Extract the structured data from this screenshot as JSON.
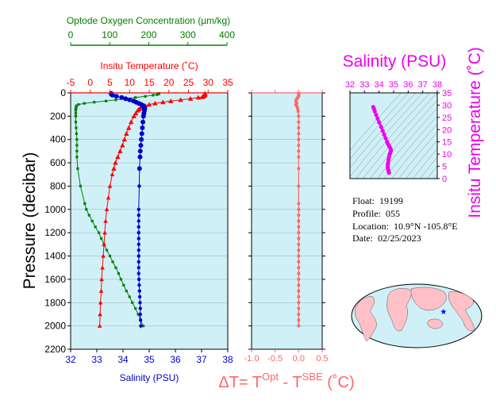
{
  "chart_data": [
    {
      "type": "line",
      "title": "",
      "y_axis": {
        "label": "Pressure (decibar)",
        "range": [
          2200,
          0
        ],
        "ticks": [
          0,
          200,
          400,
          600,
          800,
          1000,
          1200,
          1400,
          1600,
          1800,
          2000,
          2200
        ]
      },
      "x_axes": {
        "oxygen": {
          "label": "Optode Oxygen Concentration (µm/kg)",
          "range": [
            0,
            400
          ],
          "ticks": [
            0,
            100,
            200,
            300,
            400
          ],
          "color": "#008000"
        },
        "temperature": {
          "label": "Insitu Temperature (˚C)",
          "range": [
            -5,
            35
          ],
          "ticks": [
            -5,
            0,
            5,
            10,
            15,
            20,
            25,
            30,
            35
          ],
          "color": "#ff0000"
        },
        "salinity": {
          "label": "Salinity (PSU)",
          "range": [
            32,
            38
          ],
          "ticks": [
            32,
            33,
            34,
            35,
            36,
            37,
            38
          ],
          "color": "#0000cc"
        }
      },
      "series": [
        {
          "name": "Optode Oxygen Concentration",
          "axis": "oxygen",
          "color": "#008000",
          "pressure": [
            5,
            10,
            15,
            20,
            30,
            40,
            50,
            60,
            70,
            80,
            90,
            100,
            110,
            120,
            130,
            140,
            150,
            175,
            200,
            250,
            300,
            350,
            400,
            450,
            500,
            550,
            650,
            800,
            950,
            1000,
            1050,
            1100,
            1150,
            1200,
            1250,
            1300,
            1350,
            1400,
            1450,
            1500,
            1550,
            1600,
            1650,
            1700,
            1750,
            1800,
            1850,
            1900,
            1950,
            2000
          ],
          "values": [
            225,
            224,
            220,
            210,
            190,
            165,
            140,
            115,
            90,
            60,
            35,
            20,
            15,
            14,
            14,
            13,
            13,
            13,
            13,
            13,
            14,
            15,
            16,
            16,
            16,
            16,
            18,
            25,
            36,
            40,
            47,
            55,
            63,
            72,
            78,
            85,
            92,
            100,
            107,
            115,
            122,
            128,
            135,
            142,
            150,
            157,
            165,
            172,
            178,
            185
          ]
        },
        {
          "name": "Insitu Temperature",
          "axis": "temperature",
          "color": "#ff0000",
          "pressure": [
            5,
            10,
            15,
            20,
            25,
            30,
            35,
            40,
            50,
            60,
            70,
            80,
            90,
            100,
            110,
            120,
            130,
            140,
            150,
            175,
            200,
            250,
            300,
            350,
            400,
            450,
            500,
            550,
            600,
            650,
            700,
            800,
            900,
            1000,
            1100,
            1200,
            1300,
            1400,
            1500,
            1600,
            1700,
            1800,
            1900,
            2000
          ],
          "values": [
            29.2,
            29.2,
            29.2,
            29.1,
            29.0,
            28.8,
            28.5,
            27.5,
            25.5,
            23.0,
            20.5,
            18.5,
            16.5,
            15.0,
            14.0,
            13.2,
            12.8,
            12.4,
            12.1,
            11.6,
            11.1,
            10.4,
            9.8,
            9.2,
            8.7,
            8.2,
            7.6,
            7.0,
            6.4,
            6.0,
            5.6,
            5.0,
            4.6,
            4.2,
            3.9,
            3.7,
            3.5,
            3.3,
            3.1,
            2.9,
            2.8,
            2.6,
            2.5,
            2.4
          ]
        },
        {
          "name": "Salinity",
          "axis": "salinity",
          "color": "#0000cc",
          "pressure": [
            5,
            10,
            15,
            20,
            30,
            40,
            50,
            60,
            70,
            80,
            90,
            100,
            110,
            120,
            130,
            140,
            150,
            175,
            200,
            250,
            300,
            350,
            400,
            450,
            500,
            550,
            650,
            800,
            1000,
            1050,
            1100,
            1150,
            1200,
            1250,
            1300,
            1350,
            1400,
            1450,
            1500,
            1550,
            1600,
            1650,
            1700,
            1750,
            1800,
            1850,
            1900,
            1950,
            2000
          ],
          "values": [
            33.55,
            33.55,
            33.57,
            33.6,
            33.75,
            33.95,
            34.1,
            34.25,
            34.4,
            34.5,
            34.6,
            34.7,
            34.77,
            34.8,
            34.82,
            34.83,
            34.82,
            34.8,
            34.78,
            34.76,
            34.74,
            34.72,
            34.7,
            34.68,
            34.66,
            34.65,
            34.63,
            34.62,
            34.6,
            34.6,
            34.6,
            34.6,
            34.6,
            34.6,
            34.6,
            34.6,
            34.6,
            34.6,
            34.6,
            34.6,
            34.61,
            34.62,
            34.63,
            34.64,
            34.65,
            34.66,
            34.66,
            34.67,
            34.68
          ]
        }
      ]
    },
    {
      "type": "line",
      "title": "",
      "y_axis": {
        "range": [
          2200,
          0
        ],
        "ticks": [
          0,
          200,
          400,
          600,
          800,
          1000,
          1200,
          1400,
          1600,
          1800,
          2000,
          2200
        ]
      },
      "x_axis": {
        "label": "ΔT= T^Opt - T^SBE (˚C)",
        "label_parts": [
          "ΔT= T",
          "Opt",
          " - T",
          "SBE",
          " (˚C)"
        ],
        "range": [
          -1.0,
          0.5
        ],
        "ticks": [
          -1.0,
          -0.5,
          0.0,
          0.5
        ],
        "tick_labels": [
          "-1.0",
          "-0.5",
          "0.0",
          "0.5"
        ],
        "color": "#ff6666"
      },
      "series": [
        {
          "name": "",
          "color": "#ff6666",
          "pressure": [
            5,
            10,
            15,
            20,
            30,
            40,
            50,
            60,
            70,
            80,
            90,
            100,
            110,
            120,
            140,
            160,
            200,
            250,
            300,
            350,
            400,
            450,
            500,
            550,
            650,
            800,
            950,
            1000,
            1050,
            1100,
            1150,
            1200,
            1250,
            1300,
            1350,
            1400,
            1450,
            1500,
            1550,
            1600,
            1650,
            1700,
            1750,
            1800,
            1850,
            1900,
            1950,
            2000
          ],
          "values": [
            0.0,
            0.0,
            0.0,
            0.0,
            0.0,
            -0.02,
            -0.04,
            -0.05,
            -0.06,
            -0.05,
            -0.04,
            -0.06,
            -0.05,
            -0.03,
            -0.02,
            -0.01,
            0.0,
            0.0,
            0.0,
            0.0,
            0.0,
            0.0,
            0.0,
            0.0,
            0.0,
            0.0,
            0.0,
            0.0,
            0.0,
            0.0,
            0.0,
            0.0,
            0.0,
            0.0,
            0.0,
            0.0,
            0.0,
            0.0,
            0.0,
            0.0,
            0.0,
            0.0,
            0.0,
            0.0,
            0.0,
            0.0,
            0.0,
            0.0
          ]
        }
      ]
    },
    {
      "type": "scatter",
      "title": "",
      "x_axis": {
        "label": "Salinity (PSU)",
        "range": [
          32,
          38
        ],
        "ticks": [
          32,
          33,
          34,
          35,
          36,
          37,
          38
        ],
        "color": "#ee00ee"
      },
      "y_axis": {
        "label": "Insitu Temperature (˚C)",
        "range": [
          0,
          35
        ],
        "ticks": [
          0,
          5,
          10,
          15,
          20,
          25,
          30,
          35
        ],
        "color": "#ee00ee"
      },
      "series": [
        {
          "name": "",
          "color": "#ee00ee",
          "x": [
            33.6,
            33.65,
            33.7,
            33.8,
            33.9,
            34.0,
            34.15,
            34.25,
            34.35,
            34.45,
            34.55,
            34.62,
            34.7,
            34.78,
            34.82,
            34.8,
            34.76,
            34.72,
            34.68,
            34.65,
            34.62,
            34.6,
            34.6,
            34.62,
            34.66,
            34.68
          ],
          "y": [
            29.2,
            28.5,
            27.5,
            26.0,
            24.5,
            23.0,
            21.0,
            19.5,
            18.0,
            16.5,
            15.0,
            14.0,
            13.2,
            12.4,
            11.6,
            11.1,
            10.4,
            9.8,
            8.7,
            7.6,
            6.4,
            5.6,
            4.6,
            3.7,
            2.9,
            2.4
          ]
        }
      ]
    },
    {
      "type": "map",
      "title": "",
      "marker": {
        "lat": 10.9,
        "lon": -105.8,
        "symbol": "star",
        "color": "#0000ff"
      }
    }
  ],
  "info": {
    "float_label": "Float:",
    "float_value": "19199",
    "profile_label": "Profile:",
    "profile_value": "055",
    "location_label": "Location:",
    "location_value": "10.9°N  -105.8°E",
    "date_label": "Date:",
    "date_value": "02/25/2023"
  },
  "colors": {
    "plot_bg": "#d0f0f8",
    "oxygen": "#008000",
    "temperature": "#ff0000",
    "salinity": "#0000cc",
    "delta": "#ff6666",
    "ts": "#ee00ee",
    "land": "#ffc0c8"
  }
}
